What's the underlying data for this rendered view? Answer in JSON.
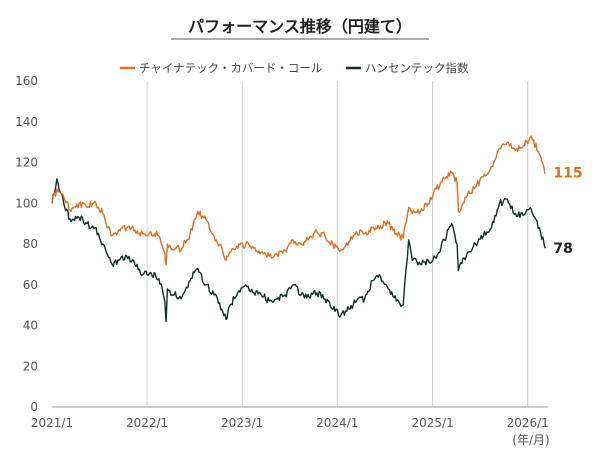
{
  "chart_data": {
    "type": "line",
    "title": "パフォーマンス推移（円建て）",
    "xlabel": "",
    "ylabel": "",
    "x_unit_label": "(年/月)",
    "ylim": [
      0,
      160
    ],
    "yticks": [
      0,
      20,
      40,
      60,
      80,
      100,
      120,
      140,
      160
    ],
    "xticks": [
      "2021/1",
      "2022/1",
      "2023/1",
      "2024/1",
      "2025/1",
      "2026/1"
    ],
    "grid": "vertical at year starts",
    "legend_position": "top-center",
    "series": [
      {
        "name": "チャイナテック・カバード・コール",
        "color": "#e07020",
        "end_label": "115",
        "points": [
          [
            "2021-01-01",
            100
          ],
          [
            "2021-01-20",
            107
          ],
          [
            "2021-02-15",
            103
          ],
          [
            "2021-03-15",
            96
          ],
          [
            "2021-04-15",
            100
          ],
          [
            "2021-05-15",
            98
          ],
          [
            "2021-06-15",
            101
          ],
          [
            "2021-07-15",
            95
          ],
          [
            "2021-08-01",
            88
          ],
          [
            "2021-08-20",
            84
          ],
          [
            "2021-09-15",
            87
          ],
          [
            "2021-10-15",
            88
          ],
          [
            "2021-11-15",
            87
          ],
          [
            "2021-12-15",
            85
          ],
          [
            "2022-01-15",
            86
          ],
          [
            "2022-02-15",
            84
          ],
          [
            "2022-03-10",
            76
          ],
          [
            "2022-03-15",
            70
          ],
          [
            "2022-03-20",
            80
          ],
          [
            "2022-04-15",
            77
          ],
          [
            "2022-05-15",
            78
          ],
          [
            "2022-06-15",
            85
          ],
          [
            "2022-07-01",
            92
          ],
          [
            "2022-07-15",
            96
          ],
          [
            "2022-08-15",
            92
          ],
          [
            "2022-09-15",
            84
          ],
          [
            "2022-10-15",
            78
          ],
          [
            "2022-10-31",
            72
          ],
          [
            "2022-11-15",
            76
          ],
          [
            "2022-12-15",
            78
          ],
          [
            "2023-01-15",
            80
          ],
          [
            "2023-02-15",
            78
          ],
          [
            "2023-03-15",
            76
          ],
          [
            "2023-04-15",
            74
          ],
          [
            "2023-05-15",
            75
          ],
          [
            "2023-06-15",
            77
          ],
          [
            "2023-07-15",
            82
          ],
          [
            "2023-08-15",
            80
          ],
          [
            "2023-09-15",
            83
          ],
          [
            "2023-10-15",
            86
          ],
          [
            "2023-11-15",
            84
          ],
          [
            "2023-12-15",
            80
          ],
          [
            "2024-01-15",
            77
          ],
          [
            "2024-02-15",
            81
          ],
          [
            "2024-03-15",
            86
          ],
          [
            "2024-04-15",
            85
          ],
          [
            "2024-05-15",
            88
          ],
          [
            "2024-06-15",
            89
          ],
          [
            "2024-07-15",
            90
          ],
          [
            "2024-08-15",
            85
          ],
          [
            "2024-09-10",
            83
          ],
          [
            "2024-10-01",
            98
          ],
          [
            "2024-10-15",
            95
          ],
          [
            "2024-11-15",
            96
          ],
          [
            "2024-12-15",
            100
          ],
          [
            "2025-01-15",
            107
          ],
          [
            "2025-02-15",
            112
          ],
          [
            "2025-03-15",
            115
          ],
          [
            "2025-04-05",
            110
          ],
          [
            "2025-04-10",
            96
          ],
          [
            "2025-05-15",
            104
          ],
          [
            "2025-06-15",
            108
          ],
          [
            "2025-07-15",
            113
          ],
          [
            "2025-08-15",
            118
          ],
          [
            "2025-09-15",
            127
          ],
          [
            "2025-10-15",
            130
          ],
          [
            "2025-11-15",
            126
          ],
          [
            "2025-12-15",
            128
          ],
          [
            "2026-01-15",
            133
          ],
          [
            "2026-02-15",
            124
          ],
          [
            "2026-03-05",
            117
          ],
          [
            "2026-03-10",
            115
          ]
        ]
      },
      {
        "name": "ハンセンテック指数",
        "color": "#102e26",
        "end_label": "78",
        "points": [
          [
            "2021-01-01",
            100
          ],
          [
            "2021-01-20",
            112
          ],
          [
            "2021-02-15",
            100
          ],
          [
            "2021-03-15",
            91
          ],
          [
            "2021-04-15",
            93
          ],
          [
            "2021-05-15",
            90
          ],
          [
            "2021-06-15",
            88
          ],
          [
            "2021-07-15",
            80
          ],
          [
            "2021-08-01",
            75
          ],
          [
            "2021-08-20",
            70
          ],
          [
            "2021-09-15",
            72
          ],
          [
            "2021-10-15",
            74
          ],
          [
            "2021-11-15",
            70
          ],
          [
            "2021-12-15",
            65
          ],
          [
            "2022-01-15",
            66
          ],
          [
            "2022-02-15",
            63
          ],
          [
            "2022-03-10",
            52
          ],
          [
            "2022-03-15",
            42
          ],
          [
            "2022-03-20",
            58
          ],
          [
            "2022-04-15",
            55
          ],
          [
            "2022-05-15",
            54
          ],
          [
            "2022-06-15",
            62
          ],
          [
            "2022-07-01",
            66
          ],
          [
            "2022-07-15",
            68
          ],
          [
            "2022-08-15",
            60
          ],
          [
            "2022-09-15",
            55
          ],
          [
            "2022-10-15",
            48
          ],
          [
            "2022-10-31",
            43
          ],
          [
            "2022-11-15",
            50
          ],
          [
            "2022-12-15",
            56
          ],
          [
            "2023-01-15",
            60
          ],
          [
            "2023-02-15",
            56
          ],
          [
            "2023-03-15",
            55
          ],
          [
            "2023-04-15",
            52
          ],
          [
            "2023-05-15",
            53
          ],
          [
            "2023-06-15",
            55
          ],
          [
            "2023-07-15",
            60
          ],
          [
            "2023-08-15",
            55
          ],
          [
            "2023-09-15",
            54
          ],
          [
            "2023-10-15",
            56
          ],
          [
            "2023-11-15",
            53
          ],
          [
            "2023-12-15",
            48
          ],
          [
            "2024-01-15",
            45
          ],
          [
            "2024-02-15",
            48
          ],
          [
            "2024-03-15",
            52
          ],
          [
            "2024-04-15",
            53
          ],
          [
            "2024-05-15",
            62
          ],
          [
            "2024-06-15",
            64
          ],
          [
            "2024-07-15",
            58
          ],
          [
            "2024-08-15",
            52
          ],
          [
            "2024-09-10",
            50
          ],
          [
            "2024-10-01",
            82
          ],
          [
            "2024-10-15",
            72
          ],
          [
            "2024-11-15",
            70
          ],
          [
            "2024-12-15",
            72
          ],
          [
            "2025-01-15",
            73
          ],
          [
            "2025-02-15",
            82
          ],
          [
            "2025-03-15",
            90
          ],
          [
            "2025-04-05",
            80
          ],
          [
            "2025-04-10",
            67
          ],
          [
            "2025-05-15",
            76
          ],
          [
            "2025-06-15",
            80
          ],
          [
            "2025-07-15",
            84
          ],
          [
            "2025-08-15",
            88
          ],
          [
            "2025-09-15",
            100
          ],
          [
            "2025-10-15",
            102
          ],
          [
            "2025-11-15",
            95
          ],
          [
            "2025-12-15",
            94
          ],
          [
            "2026-01-15",
            97
          ],
          [
            "2026-02-15",
            88
          ],
          [
            "2026-03-05",
            80
          ],
          [
            "2026-03-10",
            78
          ]
        ]
      }
    ]
  }
}
